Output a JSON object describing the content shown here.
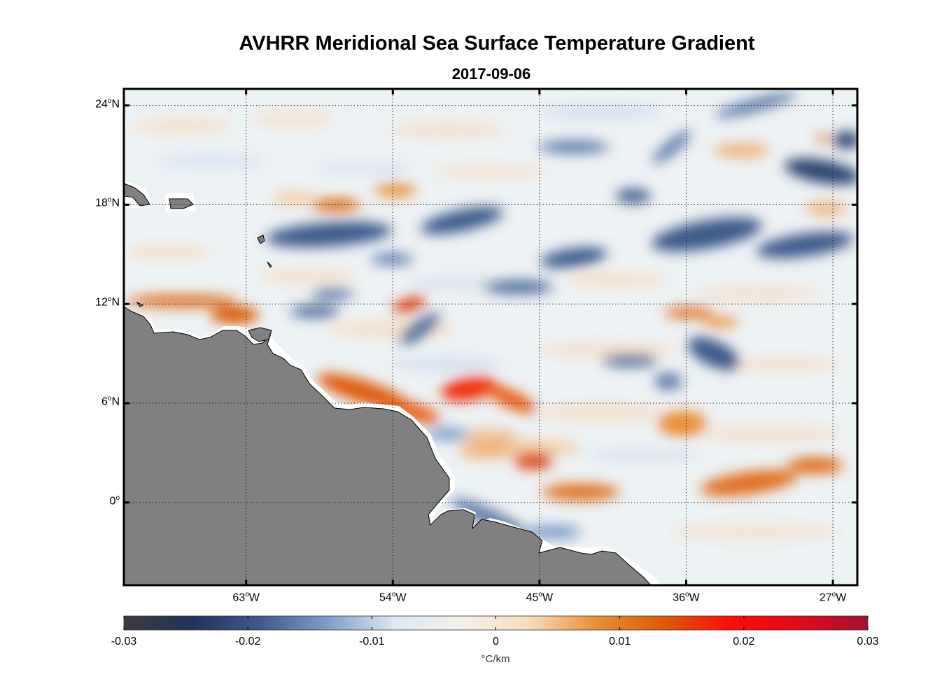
{
  "title": "AVHRR Meridional Sea Surface Temperature Gradient",
  "subtitle": "2017-09-06",
  "map": {
    "lon_range": [
      -70.5,
      -25.5
    ],
    "lat_range": [
      -5,
      25
    ],
    "land_color": "#808080",
    "grid": "dotted",
    "lat_ticks": [
      {
        "value": 24,
        "label_num": "24",
        "label_dir": "N"
      },
      {
        "value": 18,
        "label_num": "18",
        "label_dir": "N"
      },
      {
        "value": 12,
        "label_num": "12",
        "label_dir": "N"
      },
      {
        "value": 6,
        "label_num": "6",
        "label_dir": "N"
      },
      {
        "value": 0,
        "label_num": "0",
        "label_dir": ""
      }
    ],
    "lon_ticks": [
      {
        "value": -63,
        "label_num": "63",
        "label_dir": "W"
      },
      {
        "value": -54,
        "label_num": "54",
        "label_dir": "W"
      },
      {
        "value": -45,
        "label_num": "45",
        "label_dir": "W"
      },
      {
        "value": -36,
        "label_num": "36",
        "label_dir": "W"
      },
      {
        "value": -27,
        "label_num": "27",
        "label_dir": "W"
      }
    ]
  },
  "colorbar": {
    "min": -0.03,
    "max": 0.03,
    "ticks": [
      "-0.03",
      "-0.02",
      "-0.01",
      "0",
      "0.01",
      "0.02",
      "0.03"
    ],
    "unit": "°C/km",
    "colors": [
      "#3b3b3b",
      "#20335c",
      "#3d5a8a",
      "#7d9dc8",
      "#dde8f3",
      "#f3f0ea",
      "#f8dcb9",
      "#e98d36",
      "#dd5a05",
      "#ff0a0a",
      "#e00b1a",
      "#a3122f"
    ]
  },
  "features": {
    "positive_bands": [
      {
        "lon": -56,
        "lat": 18.3,
        "value": 0.01
      },
      {
        "lon": -64,
        "lat": 12,
        "value": 0.012
      },
      {
        "lon": -53,
        "lat": 6.8,
        "value": 0.018
      },
      {
        "lon": -46.5,
        "lat": 7.2,
        "value": 0.02
      },
      {
        "lon": -44.5,
        "lat": 2.7,
        "value": 0.016
      },
      {
        "lon": -42,
        "lat": 0.8,
        "value": 0.012
      },
      {
        "lon": -33,
        "lat": 5,
        "value": 0.01
      },
      {
        "lon": -28,
        "lat": 2.2,
        "value": 0.012
      },
      {
        "lon": -34,
        "lat": 11.5,
        "value": 0.01
      },
      {
        "lon": -53.8,
        "lat": 12.3,
        "value": 0.018
      }
    ],
    "negative_bands": [
      {
        "lon": -57,
        "lat": 16.5,
        "value": -0.018
      },
      {
        "lon": -49,
        "lat": 17.2,
        "value": -0.02
      },
      {
        "lon": -42,
        "lat": 14.5,
        "value": -0.02
      },
      {
        "lon": -30,
        "lat": 16.2,
        "value": -0.02
      },
      {
        "lon": -27,
        "lat": 20.5,
        "value": -0.024
      },
      {
        "lon": -34,
        "lat": 9,
        "value": -0.018
      },
      {
        "lon": -42,
        "lat": 9,
        "value": -0.016
      },
      {
        "lon": -59,
        "lat": 11.5,
        "value": -0.014
      }
    ]
  }
}
